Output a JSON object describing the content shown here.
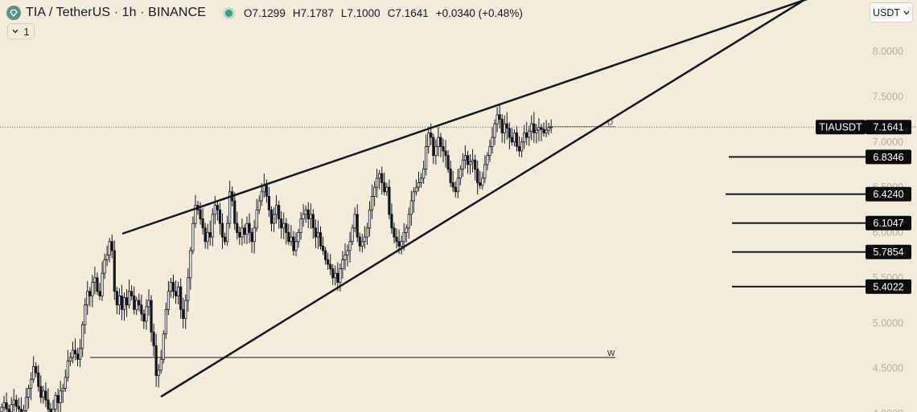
{
  "header": {
    "symbol_title": "TIA / TetherUS · 1h · BINANCE",
    "open_label": "O",
    "open": "7.1299",
    "high_label": "H",
    "high": "7.1787",
    "low_label": "L",
    "low": "7.1000",
    "close_label": "C",
    "close": "7.1641",
    "change": "+0.0340 (+0.48%)",
    "collapse_count": "1"
  },
  "currency_button": {
    "label": "USDT"
  },
  "colors": {
    "background": "#f4ecd9",
    "candle": "#131722",
    "label_bg": "#0b0b0b",
    "axis_text": "#b4ad9c"
  },
  "chart_data": {
    "type": "candlestick",
    "ticker": "TIAUSDT",
    "last_price": 7.1641,
    "y_ticks": [
      "8.0000",
      "7.5000",
      "7.0000",
      "6.5000",
      "6.0000",
      "5.5000",
      "5.0000",
      "4.5000",
      "4.0000"
    ],
    "y_tick_values": [
      8.0,
      7.5,
      7.0,
      6.5,
      6.0,
      5.5,
      5.0,
      4.5,
      4.0
    ],
    "ylim": [
      3.97,
      8.5
    ],
    "n_candles": 225,
    "closes": [
      4.07,
      4.12,
      4.05,
      4.02,
      4.1,
      4.15,
      4.08,
      4.05,
      4.0,
      4.03,
      4.18,
      4.28,
      4.38,
      4.52,
      4.45,
      4.3,
      4.18,
      4.25,
      4.15,
      4.05,
      3.98,
      4.05,
      4.2,
      4.12,
      4.25,
      4.28,
      4.4,
      4.58,
      4.62,
      4.7,
      4.66,
      4.6,
      4.72,
      4.98,
      5.2,
      5.35,
      5.3,
      5.45,
      5.5,
      5.35,
      5.3,
      5.55,
      5.7,
      5.75,
      5.9,
      5.8,
      5.35,
      5.2,
      5.3,
      5.15,
      5.28,
      5.2,
      5.35,
      5.3,
      5.15,
      5.25,
      5.2,
      5.1,
      5.02,
      5.18,
      5.25,
      4.9,
      4.75,
      4.42,
      4.48,
      4.6,
      4.88,
      5.15,
      5.35,
      5.45,
      5.35,
      5.3,
      5.4,
      5.15,
      5.05,
      5.25,
      5.5,
      5.8,
      6.1,
      6.3,
      6.25,
      6.15,
      6.05,
      5.9,
      6.0,
      5.95,
      6.2,
      6.3,
      6.25,
      6.1,
      5.95,
      5.9,
      6.1,
      6.45,
      6.35,
      6.1,
      6.0,
      5.95,
      6.05,
      5.98,
      6.1,
      6.0,
      5.9,
      6.05,
      6.25,
      6.35,
      6.45,
      6.52,
      6.4,
      6.25,
      6.1,
      6.2,
      6.3,
      6.15,
      6.05,
      6.1,
      6.0,
      5.9,
      5.95,
      5.8,
      5.9,
      6.0,
      6.15,
      6.2,
      6.25,
      6.15,
      6.2,
      6.05,
      5.95,
      6.0,
      5.85,
      5.8,
      5.7,
      5.65,
      5.6,
      5.5,
      5.55,
      5.45,
      5.6,
      5.7,
      5.75,
      5.8,
      5.9,
      6.05,
      6.2,
      5.95,
      5.85,
      5.9,
      5.95,
      6.05,
      6.25,
      6.4,
      6.5,
      6.6,
      6.65,
      6.55,
      6.45,
      6.5,
      6.2,
      6.05,
      5.95,
      5.9,
      5.85,
      5.9,
      6.0,
      6.05,
      6.2,
      6.35,
      6.45,
      6.5,
      6.55,
      6.6,
      6.7,
      6.95,
      7.1,
      7.05,
      6.85,
      6.95,
      7.05,
      6.95,
      6.9,
      6.85,
      6.7,
      6.55,
      6.5,
      6.45,
      6.6,
      6.7,
      6.8,
      6.85,
      6.75,
      6.78,
      6.8,
      6.7,
      6.55,
      6.52,
      6.6,
      6.75,
      6.85,
      6.95,
      7.05,
      7.2,
      7.3,
      7.25,
      7.1,
      7.2,
      7.15,
      7.05,
      7.0,
      7.1,
      6.95,
      6.9,
      7.0,
      7.1,
      7.05,
      7.12,
      7.2,
      7.1,
      7.13,
      7.16,
      7.14,
      7.1,
      7.13,
      7.16,
      7.1641
    ],
    "horizontal_levels": [
      {
        "label": "6.8346",
        "value": 6.8346
      },
      {
        "label": "6.4240",
        "value": 6.424
      },
      {
        "label": "6.1047",
        "value": 6.1047
      },
      {
        "label": "5.7854",
        "value": 5.7854
      },
      {
        "label": "5.4022",
        "value": 5.4022
      }
    ],
    "weekly_level": {
      "value": 4.62,
      "marker": "W"
    },
    "daily_level": {
      "value": 7.17,
      "marker": "D"
    }
  }
}
